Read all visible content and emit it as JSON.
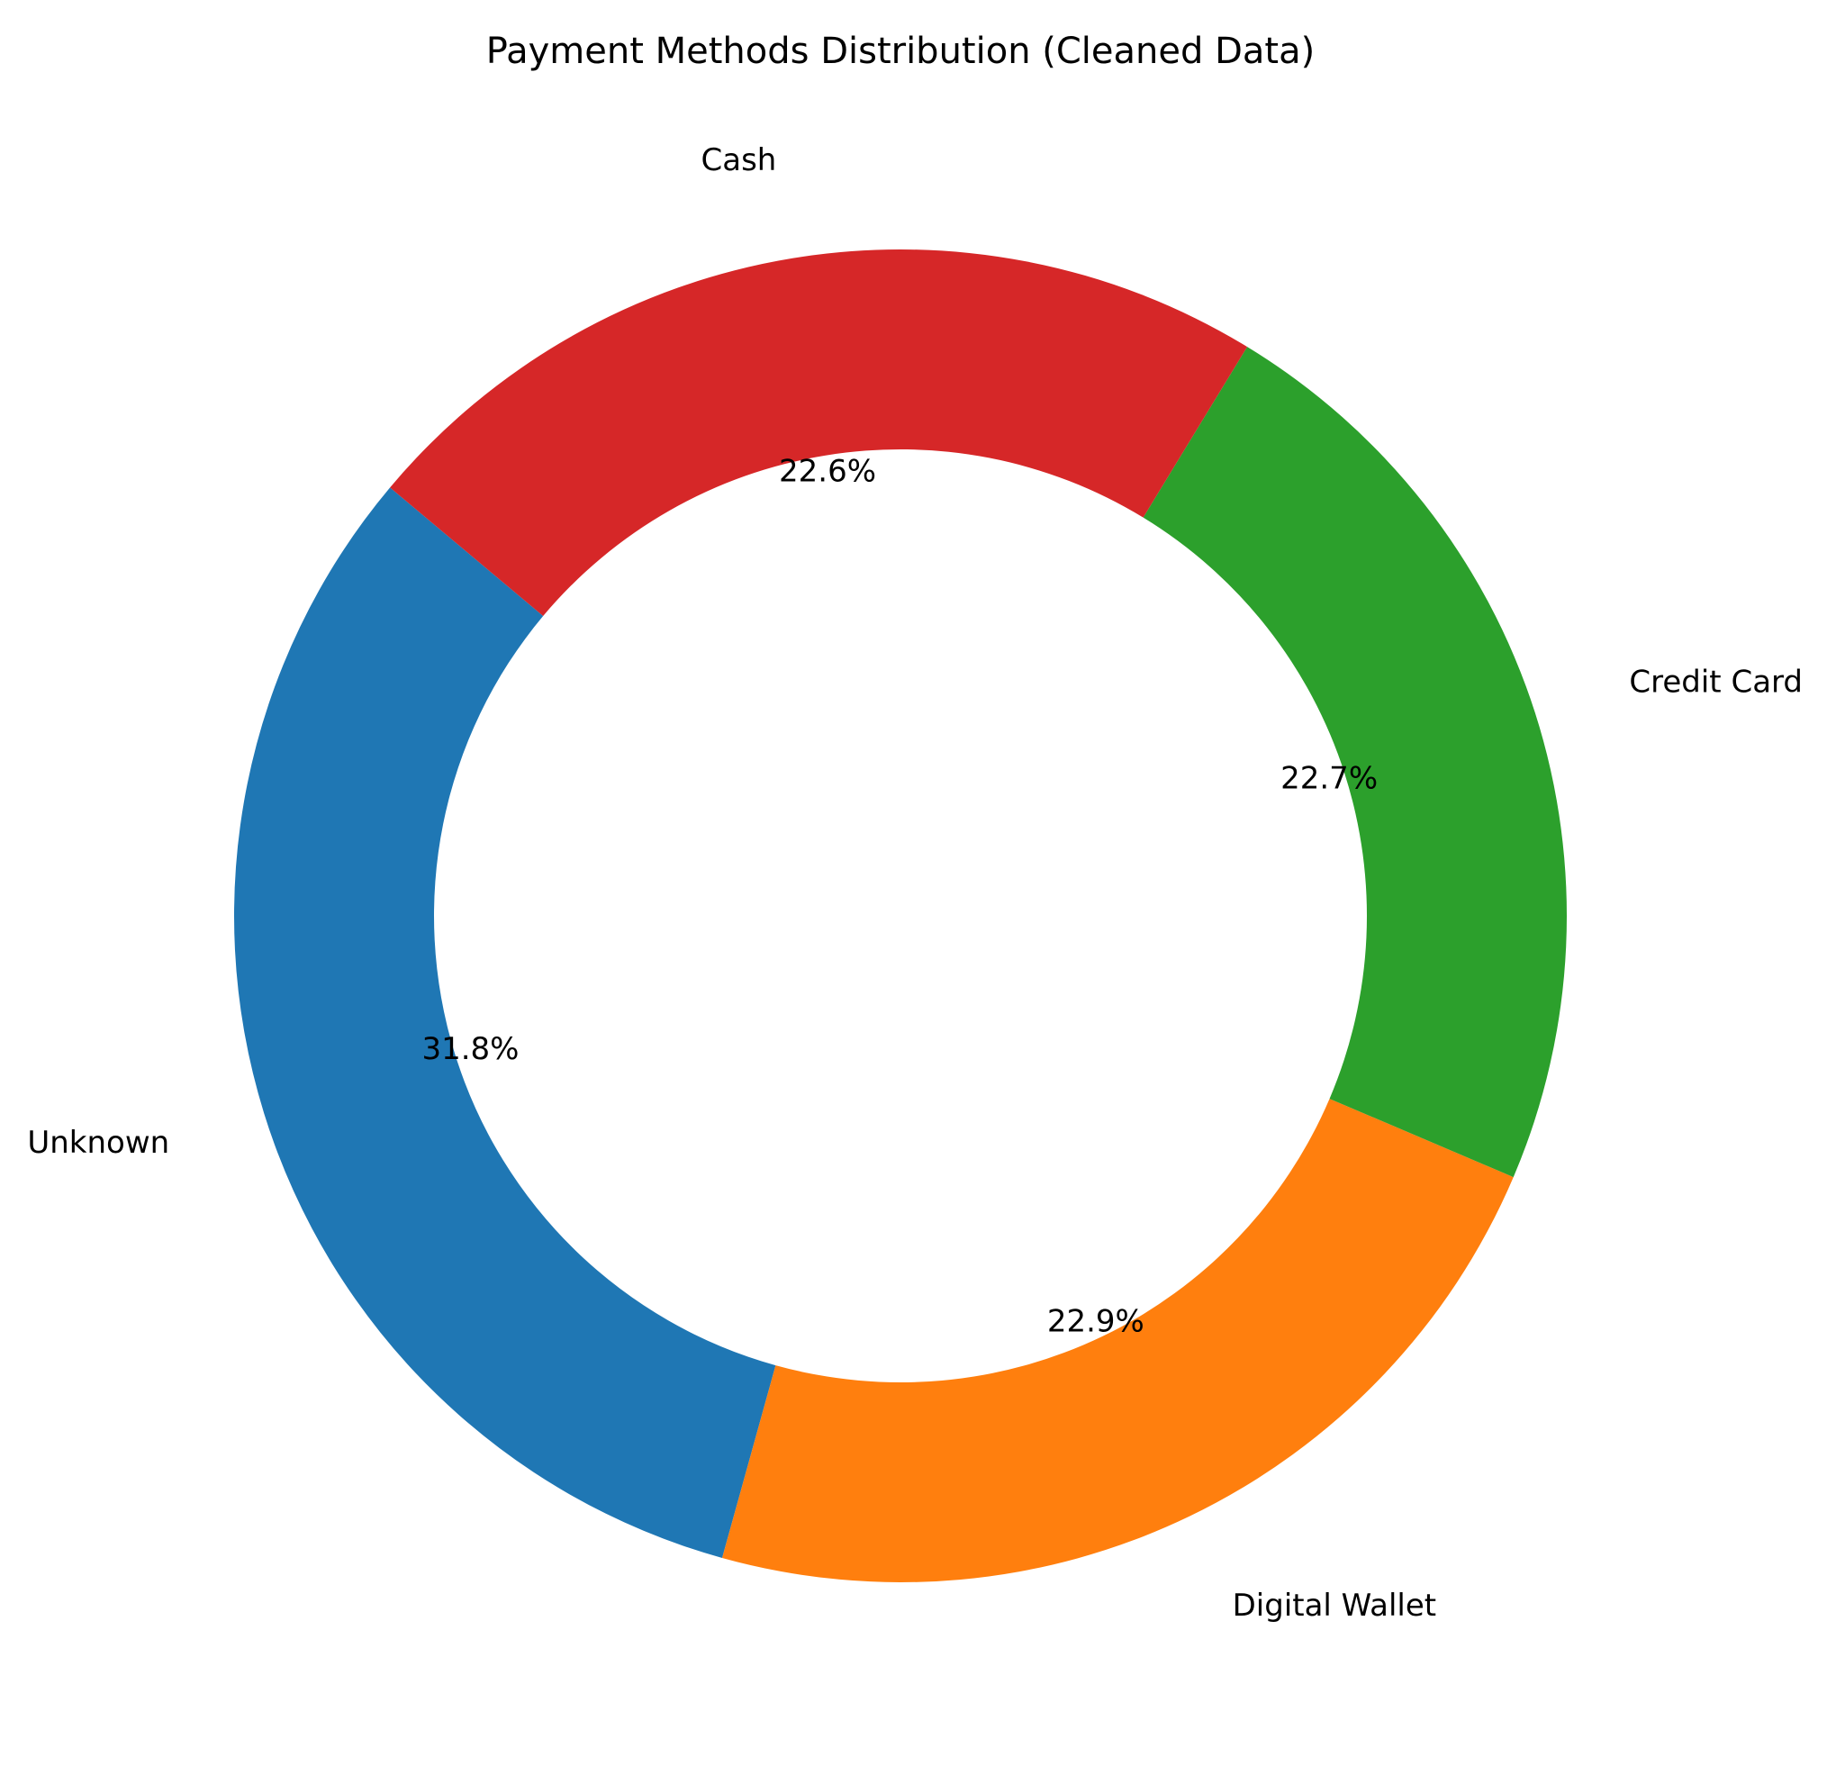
{
  "chart_data": {
    "type": "pie",
    "style": "donut",
    "title": "Payment Methods Distribution (Cleaned Data)",
    "slices": [
      {
        "label": "Unknown",
        "value": 31.8,
        "pct_label": "31.8%",
        "color": "#1f77b4"
      },
      {
        "label": "Digital Wallet",
        "value": 22.9,
        "pct_label": "22.9%",
        "color": "#ff7f0e"
      },
      {
        "label": "Credit Card",
        "value": 22.7,
        "pct_label": "22.7%",
        "color": "#2ca02c"
      },
      {
        "label": "Cash",
        "value": 22.6,
        "pct_label": "22.6%",
        "color": "#d62728"
      }
    ]
  }
}
